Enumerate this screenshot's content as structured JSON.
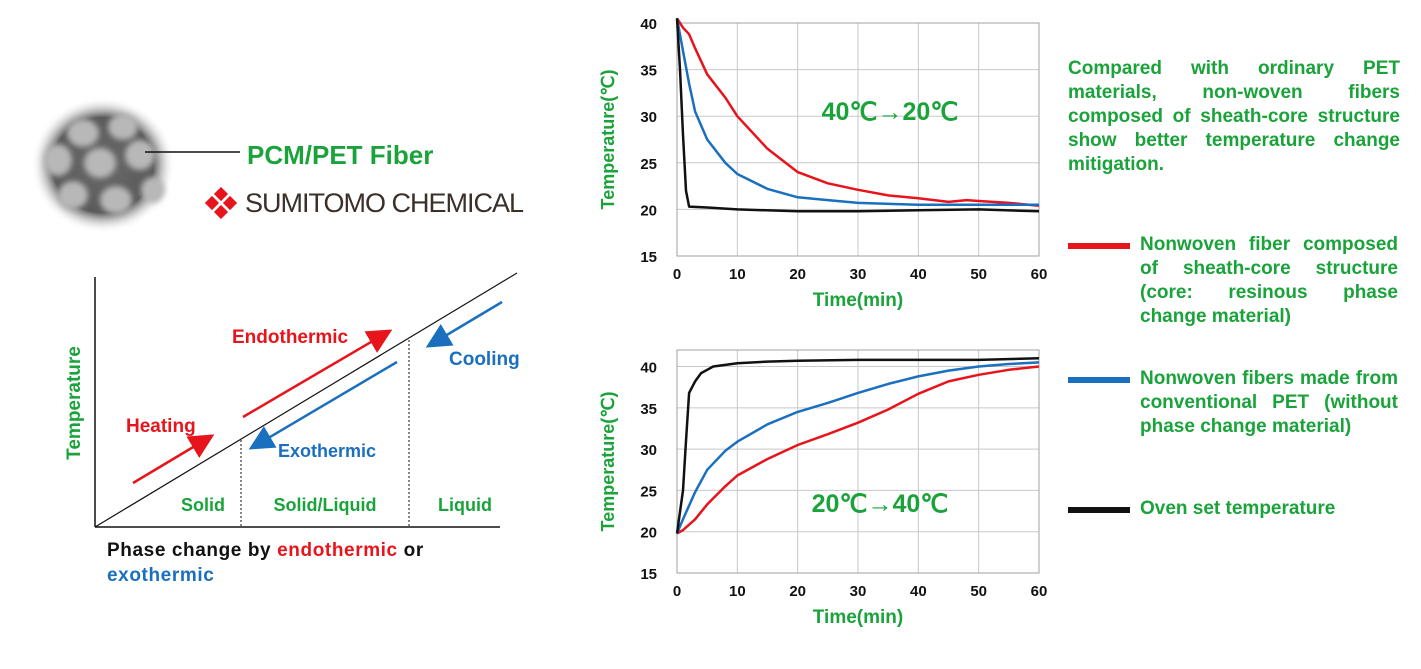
{
  "fiber": {
    "label": "PCM/PET Fiber"
  },
  "logo": {
    "text": "SUMITOMO CHEMICAL"
  },
  "phase_diagram": {
    "y_axis_label": "Temperature",
    "region_labels": [
      "Solid",
      "Solid/Liquid",
      "Liquid"
    ],
    "arrow_labels": {
      "heating": "Heating",
      "endothermic": "Endothermic",
      "cooling": "Cooling",
      "exothermic": "Exothermic"
    },
    "caption": {
      "prefix": "Phase change by ",
      "endo": "endothermic",
      "mid": " or ",
      "exo": "exothermic"
    }
  },
  "colors": {
    "green": "#1aa33a",
    "red": "#e8141b",
    "blue": "#1b6fbf",
    "black": "#111111"
  },
  "description": "Compared with ordinary PET materials, non-woven fibers composed of sheath-core structure show better temperature change mitigation.",
  "legend": [
    {
      "label": "Nonwoven fiber composed of sheath-core structure (core: resinous phase change material)",
      "color": "#e8141b"
    },
    {
      "label": "Nonwoven fibers made from conventional PET (without phase change material)",
      "color": "#1b6fbf"
    },
    {
      "label": "Oven set temperature",
      "color": "#111111"
    }
  ],
  "chart_data": [
    {
      "type": "line",
      "annotation": "40℃→20℃",
      "xlabel": "Time(min)",
      "ylabel": "Temperature(℃)",
      "xlim": [
        0,
        60
      ],
      "ylim": [
        15,
        40
      ],
      "x_ticks": [
        0,
        10,
        20,
        30,
        40,
        50,
        60
      ],
      "y_ticks": [
        15,
        20,
        25,
        30,
        35,
        40
      ],
      "grid": true,
      "series": [
        {
          "color": "#e8141b",
          "x": [
            0,
            1,
            2,
            3,
            5,
            8,
            10,
            15,
            20,
            25,
            30,
            35,
            40,
            45,
            48,
            50,
            55,
            60
          ],
          "y": [
            40.5,
            39.5,
            38.8,
            37.3,
            34.5,
            32,
            30,
            26.5,
            24,
            22.8,
            22.1,
            21.5,
            21.2,
            20.8,
            21.0,
            20.9,
            20.7,
            20.4
          ]
        },
        {
          "color": "#1b6fbf",
          "x": [
            0,
            1,
            2,
            3,
            5,
            8,
            10,
            15,
            20,
            25,
            30,
            40,
            50,
            60
          ],
          "y": [
            40.5,
            37,
            33.5,
            30.5,
            27.5,
            25,
            23.8,
            22.2,
            21.3,
            21.0,
            20.7,
            20.5,
            20.5,
            20.5
          ]
        },
        {
          "color": "#111111",
          "x": [
            0,
            0.5,
            1,
            1.5,
            2,
            5,
            10,
            20,
            30,
            40,
            50,
            60
          ],
          "y": [
            40.5,
            35,
            28,
            22,
            20.3,
            20.2,
            20.0,
            19.8,
            19.8,
            19.9,
            20.0,
            19.8
          ]
        }
      ]
    },
    {
      "type": "line",
      "annotation": "20℃→40℃",
      "xlabel": "Time(min)",
      "ylabel": "Temperature(℃)",
      "xlim": [
        0,
        60
      ],
      "ylim": [
        15,
        42
      ],
      "x_ticks": [
        0,
        10,
        20,
        30,
        40,
        50,
        60
      ],
      "y_ticks": [
        15,
        20,
        25,
        30,
        35,
        40
      ],
      "grid": true,
      "series": [
        {
          "color": "#e8141b",
          "x": [
            0,
            1,
            3,
            5,
            8,
            10,
            15,
            20,
            25,
            30,
            35,
            40,
            45,
            50,
            55,
            60
          ],
          "y": [
            19.8,
            20.2,
            21.5,
            23.3,
            25.5,
            26.8,
            28.8,
            30.5,
            31.8,
            33.2,
            34.8,
            36.7,
            38.2,
            39.0,
            39.6,
            40.0
          ]
        },
        {
          "color": "#1b6fbf",
          "x": [
            0,
            1,
            3,
            5,
            8,
            10,
            15,
            20,
            25,
            30,
            35,
            40,
            45,
            50,
            55,
            60
          ],
          "y": [
            19.8,
            21.5,
            24.8,
            27.5,
            29.8,
            30.9,
            33.0,
            34.5,
            35.6,
            36.8,
            37.9,
            38.8,
            39.5,
            40.0,
            40.3,
            40.5
          ]
        },
        {
          "color": "#111111",
          "x": [
            0,
            1,
            1.5,
            2,
            3,
            4,
            5,
            6,
            8,
            10,
            15,
            20,
            30,
            40,
            50,
            60
          ],
          "y": [
            19.8,
            25,
            31,
            36.8,
            38.2,
            39.2,
            39.6,
            40.0,
            40.2,
            40.4,
            40.6,
            40.7,
            40.8,
            40.8,
            40.8,
            41.0
          ]
        }
      ]
    }
  ]
}
